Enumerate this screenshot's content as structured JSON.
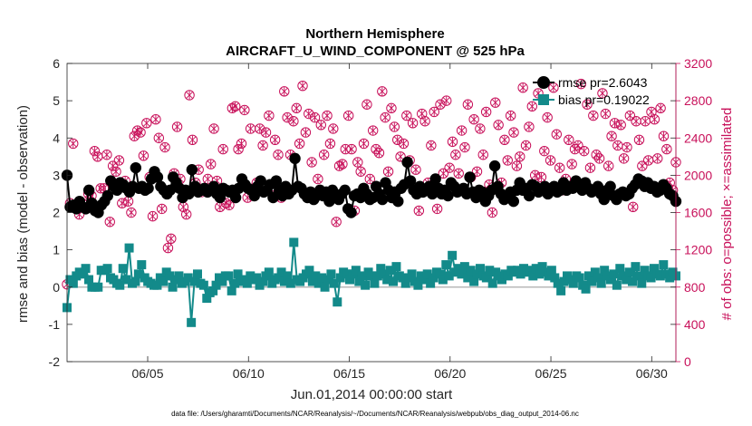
{
  "chart_data": {
    "type": "line",
    "title": "Northern Hemisphere",
    "subtitle": "AIRCRAFT_U_WIND_COMPONENT @ 525 hPa",
    "xlabel": "Jun.01,2014 00:00:00 start",
    "ylabel": "rmse and bias (model - observation)",
    "ylabel_right": "# of obs: o=possible; ×=assimilated",
    "ylim": [
      -2,
      6
    ],
    "ylim_right": [
      0,
      3200
    ],
    "yticks": [
      -2,
      -1,
      0,
      1,
      2,
      3,
      4,
      5,
      6
    ],
    "yticks_right": [
      0,
      400,
      800,
      1200,
      1600,
      2000,
      2400,
      2800,
      3200
    ],
    "xlim": [
      1,
      31.2
    ],
    "xticks": [
      5,
      10,
      15,
      20,
      25,
      30
    ],
    "xtick_labels": [
      "06/05",
      "06/10",
      "06/15",
      "06/20",
      "06/25",
      "06/30"
    ],
    "footnote": "data file: /Users/gharamti/Documents/NCAR/Reanalysis/~/Documents/NCAR/Reanalysis/webpub/obs_diag_output_2014-06.nc",
    "legend": {
      "placement": "top-right",
      "entries": [
        {
          "label": "rmse pr=2.6043",
          "color": "#000000"
        },
        {
          "label": "bias pr=0.19022",
          "color": "#138a8a"
        }
      ]
    },
    "colors": {
      "rmse": "#000000",
      "bias": "#138a8a",
      "obs": "#c8105a",
      "zero_line": "#b8b8b8"
    },
    "grid": false,
    "series": [
      {
        "name": "rmse",
        "axis": "left",
        "values": [
          3.0,
          2.15,
          2.2,
          2.1,
          2.3,
          2.15,
          2.1,
          2.6,
          2.25,
          2.05,
          2.0,
          2.2,
          2.3,
          2.45,
          2.85,
          2.7,
          2.6,
          2.8,
          2.75,
          2.65,
          2.55,
          2.7,
          3.2,
          2.65,
          2.7,
          2.6,
          2.65,
          2.9,
          3.1,
          2.95,
          2.7,
          2.6,
          2.5,
          2.6,
          2.95,
          2.8,
          2.65,
          2.4,
          2.6,
          2.5,
          3.15,
          2.7,
          2.55,
          2.6,
          2.65,
          2.55,
          2.6,
          2.7,
          2.5,
          2.4,
          2.65,
          2.6,
          2.55,
          2.6,
          2.4,
          2.65,
          2.9,
          2.75,
          2.65,
          2.6,
          2.45,
          2.7,
          2.85,
          2.55,
          2.6,
          2.75,
          2.4,
          2.85,
          2.6,
          2.45,
          2.7,
          2.5,
          2.6,
          3.45,
          2.7,
          2.65,
          2.5,
          2.4,
          2.55,
          2.35,
          2.45,
          2.6,
          2.45,
          2.55,
          2.3,
          2.6,
          2.4,
          2.35,
          2.5,
          2.6,
          2.1,
          2.0,
          2.45,
          2.5,
          2.4,
          2.65,
          2.5,
          2.35,
          2.4,
          2.7,
          2.5,
          2.35,
          2.8,
          2.6,
          2.4,
          2.55,
          2.3,
          2.65,
          2.75,
          3.35,
          2.85,
          2.6,
          2.5,
          2.7,
          2.55,
          2.6,
          2.7,
          2.5,
          2.9,
          2.65,
          2.5,
          2.6,
          2.45,
          2.8,
          2.7,
          2.55,
          2.6,
          2.65,
          2.5,
          2.95,
          2.55,
          2.4,
          2.6,
          2.55,
          2.3,
          2.45,
          2.6,
          3.25,
          2.7,
          2.5,
          2.35,
          2.4,
          2.55,
          2.3,
          2.6,
          2.8,
          2.6,
          2.65,
          2.45,
          2.75,
          2.7,
          2.55,
          2.6,
          2.7,
          2.5,
          2.65,
          2.7,
          2.55,
          2.6,
          2.8,
          2.6,
          2.7,
          2.65,
          2.85,
          2.7,
          2.6,
          2.8,
          2.65,
          2.55,
          2.6,
          2.7,
          2.5,
          2.35,
          2.6,
          2.7,
          2.45,
          2.35,
          2.5,
          2.55,
          2.45,
          2.5,
          2.65,
          2.75,
          2.9,
          2.85,
          2.7,
          2.8,
          2.65,
          2.7,
          2.55,
          2.6,
          2.75,
          2.65,
          2.5,
          2.45,
          2.3
        ]
      },
      {
        "name": "bias",
        "axis": "left",
        "values": [
          -0.55,
          0.2,
          0.1,
          0.3,
          0.4,
          0.35,
          0.5,
          0.2,
          0.0,
          0.0,
          0.0,
          0.45,
          0.45,
          0.5,
          0.25,
          0.2,
          0.1,
          0.05,
          0.5,
          0.2,
          1.05,
          0.1,
          0.15,
          0.35,
          0.6,
          0.25,
          0.15,
          0.1,
          0.05,
          0.05,
          0.25,
          0.15,
          0.4,
          0.3,
          0.0,
          0.2,
          0.3,
          0.1,
          0.15,
          0.25,
          -0.95,
          0.15,
          0.35,
          0.1,
          0.05,
          -0.3,
          -0.15,
          -0.1,
          0.05,
          0.25,
          0.15,
          0.3,
          0.3,
          -0.1,
          0.1,
          0.35,
          0.15,
          0.2,
          0.1,
          0.3,
          0.2,
          0.25,
          0.05,
          0.15,
          0.3,
          0.4,
          0.1,
          0.2,
          0.25,
          0.4,
          0.15,
          0.3,
          0.1,
          1.2,
          0.2,
          0.15,
          0.25,
          0.35,
          0.45,
          0.15,
          0.3,
          0.1,
          0.25,
          0.0,
          0.2,
          0.35,
          0.1,
          -0.4,
          0.25,
          0.4,
          0.35,
          0.2,
          0.35,
          0.45,
          0.15,
          0.3,
          0.05,
          0.4,
          0.3,
          0.1,
          0.3,
          0.5,
          0.35,
          0.2,
          0.45,
          0.15,
          0.55,
          0.3,
          0.25,
          0.1,
          0.25,
          0.35,
          0.15,
          0.05,
          0.3,
          0.2,
          0.35,
          0.1,
          0.25,
          0.4,
          0.35,
          0.2,
          0.6,
          0.3,
          0.85,
          0.4,
          0.5,
          0.35,
          0.55,
          0.25,
          0.45,
          0.15,
          0.35,
          0.5,
          0.3,
          0.25,
          0.45,
          0.1,
          0.4,
          0.3,
          0.2,
          0.35,
          0.3,
          0.45,
          0.4,
          0.45,
          0.35,
          0.5,
          0.4,
          0.45,
          0.3,
          0.5,
          0.35,
          0.55,
          0.4,
          0.3,
          0.45,
          0.25,
          0.1,
          -0.1,
          0.15,
          0.3,
          0.2,
          0.1,
          0.3,
          0.25,
          0.05,
          -0.05,
          0.3,
          0.15,
          0.4,
          0.25,
          0.1,
          0.45,
          0.3,
          0.2,
          0.35,
          0.05,
          0.5,
          0.3,
          0.2,
          0.4,
          0.15,
          0.55,
          0.3,
          0.1,
          0.45,
          0.3,
          0.25,
          0.5,
          0.35,
          0.3,
          0.6,
          0.35,
          0.25,
          0.4,
          0.3
        ]
      },
      {
        "name": "possible",
        "axis": "right",
        "marker": "o",
        "values": [
          830,
          1700,
          2340,
          1680,
          1580,
          1700,
          1640,
          1800,
          1780,
          2260,
          2200,
          1860,
          1860,
          2220,
          1500,
          2100,
          2040,
          2160,
          1700,
          1940,
          1720,
          1600,
          2420,
          2480,
          2460,
          2210,
          2560,
          1980,
          1560,
          2600,
          2400,
          1640,
          2300,
          1220,
          1320,
          2020,
          2520,
          1960,
          1660,
          1580,
          2860,
          2380,
          1920,
          2060,
          1820,
          1840,
          1960,
          2120,
          2500,
          1940,
          1660,
          2280,
          1700,
          1680,
          2720,
          2740,
          2280,
          2340,
          2700,
          1760,
          2500,
          1840,
          1920,
          2500,
          2320,
          2460,
          2640,
          1880,
          2380,
          2220,
          1760,
          2900,
          2620,
          2220,
          2580,
          2720,
          2340,
          2960,
          2460,
          2660,
          2140,
          2620,
          1960,
          2540,
          2220,
          2640,
          2340,
          2500,
          1500,
          2100,
          2120,
          2280,
          2640,
          2280,
          1620,
          2140,
          2040,
          2340,
          2760,
          1960,
          2480,
          2280,
          2240,
          2900,
          2620,
          2040,
          2720,
          2520,
          2380,
          2200,
          2340,
          2640,
          2160,
          2560,
          2060,
          1620,
          2660,
          2580,
          1920,
          2320,
          2680,
          1640,
          2760,
          2020,
          2800,
          2080,
          2360,
          2220,
          2020,
          2480,
          2300,
          2760,
          1980,
          2600,
          2040,
          2500,
          2220,
          2680,
          1900,
          1600,
          2780,
          2540,
          1920,
          2380,
          2160,
          2640,
          2460,
          2100,
          2200,
          2940,
          2320,
          2520,
          2740,
          2000,
          2880,
          1980,
          2260,
          2620,
          2160,
          2940,
          2440,
          2080,
          1840,
          1960,
          2380,
          2120,
          2280,
          2320,
          2980,
          2260,
          2760,
          2080,
          2640,
          2220,
          2180,
          2880,
          2660,
          2100,
          2420,
          2560,
          2320,
          2540,
          2180,
          2300,
          2640,
          1660,
          2580,
          2380,
          2100,
          2580,
          2160,
          2680,
          2600,
          2180,
          2720,
          2420,
          2280,
          1920,
          1840,
          2140
        ]
      },
      {
        "name": "assimilated",
        "axis": "right",
        "marker": "x",
        "values": [
          830,
          1700,
          2340,
          1680,
          1580,
          1700,
          1640,
          1800,
          1780,
          2260,
          2200,
          1860,
          1860,
          2220,
          1500,
          2100,
          2040,
          2160,
          1700,
          1940,
          1720,
          1600,
          2420,
          2480,
          2460,
          2210,
          2560,
          1980,
          1560,
          2600,
          2400,
          1640,
          2300,
          1220,
          1320,
          2020,
          2520,
          1960,
          1660,
          1580,
          2860,
          2380,
          1920,
          2060,
          1820,
          1840,
          1960,
          2120,
          2500,
          1940,
          1660,
          2280,
          1700,
          1680,
          2720,
          2740,
          2280,
          2340,
          2700,
          1760,
          2500,
          1840,
          1920,
          2500,
          2320,
          2460,
          2640,
          1880,
          2380,
          2220,
          1760,
          2900,
          2620,
          2220,
          2580,
          2720,
          2340,
          2960,
          2460,
          2660,
          2140,
          2620,
          1960,
          2540,
          2220,
          2640,
          2340,
          2500,
          1500,
          2100,
          2120,
          2280,
          2640,
          2280,
          1620,
          2140,
          2040,
          2340,
          2760,
          1960,
          2480,
          2280,
          2240,
          2900,
          2620,
          2040,
          2720,
          2520,
          2380,
          2200,
          2340,
          2640,
          2160,
          2560,
          2060,
          1620,
          2660,
          2580,
          1920,
          2320,
          2680,
          1640,
          2760,
          2020,
          2800,
          2080,
          2360,
          2220,
          2020,
          2480,
          2300,
          2760,
          1980,
          2600,
          2040,
          2500,
          2220,
          2680,
          1900,
          1600,
          2780,
          2540,
          1920,
          2380,
          2160,
          2640,
          2460,
          2100,
          2200,
          2940,
          2320,
          2520,
          2740,
          2000,
          2880,
          1980,
          2260,
          2620,
          2160,
          2940,
          2440,
          2080,
          1840,
          1960,
          2380,
          2120,
          2280,
          2320,
          2980,
          2260,
          2760,
          2080,
          2640,
          2220,
          2180,
          2880,
          2660,
          2100,
          2420,
          2560,
          2320,
          2540,
          2180,
          2300,
          2640,
          1660,
          2580,
          2380,
          2100,
          2580,
          2160,
          2680,
          2600,
          2180,
          2720,
          2420,
          2280,
          1920,
          1840,
          2140
        ]
      }
    ]
  }
}
